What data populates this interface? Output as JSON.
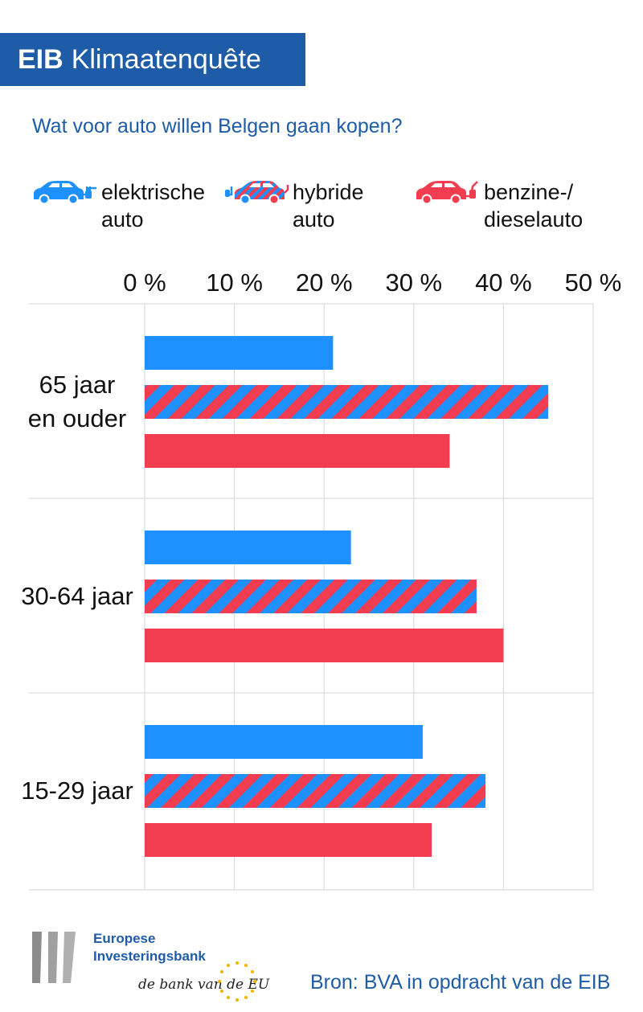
{
  "header": {
    "brand": "EIB",
    "title": "Klimaatenquête"
  },
  "question": "Wat voor auto willen Belgen gaan kopen?",
  "legend": [
    {
      "line1": "elektrische",
      "line2": "auto",
      "icon": "electric-car-icon",
      "color": "#1e90ff"
    },
    {
      "line1": "hybride",
      "line2": "auto",
      "icon": "hybrid-car-icon",
      "color": "#1e90ff"
    },
    {
      "line1": "benzine-/",
      "line2": "dieselauto",
      "icon": "fuel-car-icon",
      "color": "#f23c4f"
    }
  ],
  "colors": {
    "electric": "#1e90ff",
    "fuel": "#f23c4f",
    "brand": "#1f5ca8",
    "grid": "#dddddd"
  },
  "chart_data": {
    "type": "bar",
    "orientation": "horizontal",
    "categories": [
      {
        "label": [
          "65 jaar",
          "en ouder"
        ]
      },
      {
        "label": [
          "30-64 jaar"
        ]
      },
      {
        "label": [
          "15-29 jaar"
        ]
      }
    ],
    "series": [
      {
        "name": "elektrische auto",
        "values": [
          21,
          23,
          31
        ],
        "pattern": "solid-blue"
      },
      {
        "name": "hybride auto",
        "values": [
          45,
          37,
          38
        ],
        "pattern": "stripes-blue-red"
      },
      {
        "name": "benzine-/dieselauto",
        "values": [
          34,
          40,
          32
        ],
        "pattern": "solid-red"
      }
    ],
    "xlim": [
      0,
      50
    ],
    "ticks": [
      0,
      10,
      20,
      30,
      40,
      50
    ],
    "tick_labels": [
      "0 %",
      "10 %",
      "20 %",
      "30 %",
      "40 %",
      "50 %"
    ],
    "grid": true,
    "legend_position": "top"
  },
  "footer": {
    "org_line1": "Europese",
    "org_line2": "Investeringsbank",
    "tagline": "de bank van de EU",
    "source": "Bron: BVA in opdracht van de EIB"
  }
}
